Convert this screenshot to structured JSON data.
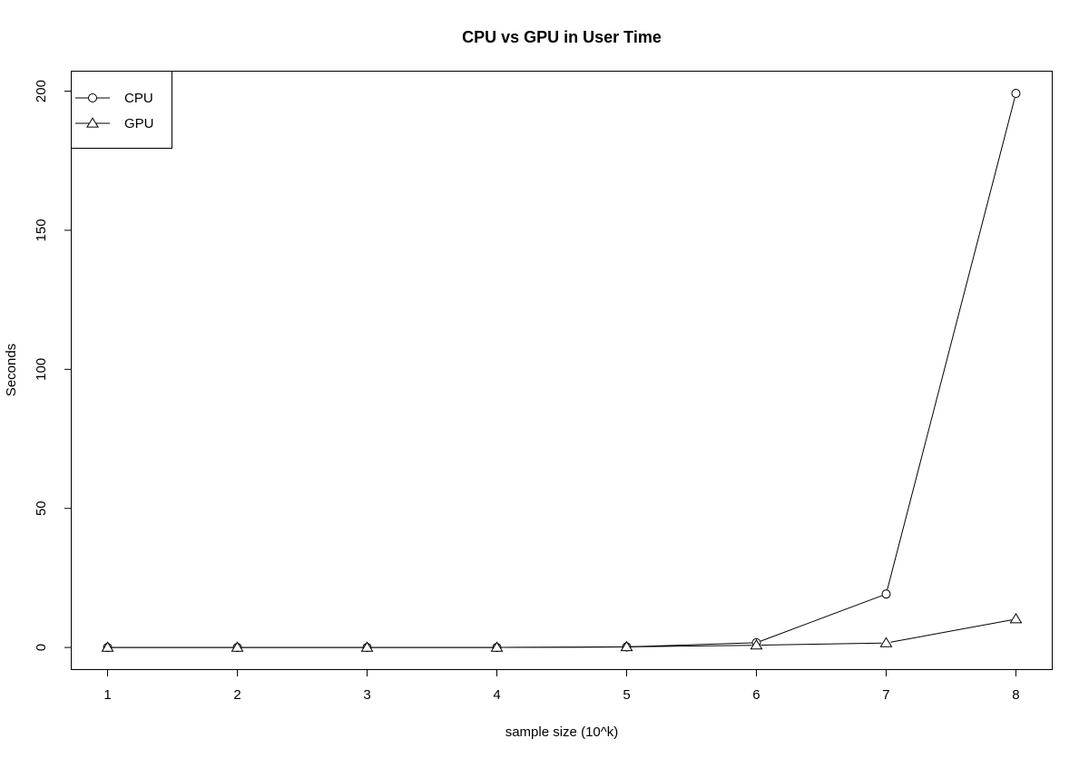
{
  "chart_data": {
    "type": "line",
    "title": "CPU vs GPU in User Time",
    "xlabel": "sample size (10^k)",
    "ylabel": "Seconds",
    "x": [
      1,
      2,
      3,
      4,
      5,
      6,
      7,
      8
    ],
    "x_ticks": [
      "1",
      "2",
      "3",
      "4",
      "5",
      "6",
      "7",
      "8"
    ],
    "y_ticks": [
      "0",
      "50",
      "100",
      "150",
      "200"
    ],
    "y_tick_values": [
      0,
      50,
      100,
      150,
      200
    ],
    "xlim": [
      0.72,
      8.28
    ],
    "ylim": [
      -7.96,
      207.2
    ],
    "grid": false,
    "legend_position": "top-left",
    "series": [
      {
        "name": "CPU",
        "marker": "circle",
        "color": "#000000",
        "values": [
          0.0,
          0.0,
          0.0,
          0.0,
          0.2,
          1.7,
          19.2,
          199.2
        ]
      },
      {
        "name": "GPU",
        "marker": "triangle",
        "color": "#000000",
        "values": [
          0.0,
          0.0,
          0.0,
          0.0,
          0.2,
          0.8,
          1.6,
          10.2
        ]
      }
    ]
  }
}
